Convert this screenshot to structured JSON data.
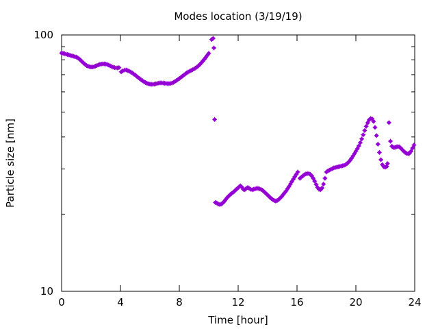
{
  "chart_data": {
    "type": "scatter",
    "title": "Modes location (3/19/19)",
    "xlabel": "Time [hour]",
    "ylabel": "Particle size [nm]",
    "xlim": [
      0,
      24
    ],
    "ylim": [
      10,
      100
    ],
    "yscale": "log",
    "grid": false,
    "legend": "none",
    "xticks": [
      0,
      4,
      8,
      12,
      16,
      20,
      24
    ],
    "xtick_labels": [
      "0",
      "4",
      "8",
      "12",
      "16",
      "20",
      "24"
    ],
    "yticks": [
      10,
      100
    ],
    "ytick_labels": [
      "10",
      "100"
    ],
    "marker_color": "#9400d3",
    "series": [
      {
        "points": [
          [
            0,
            85
          ],
          [
            0.1,
            84.8
          ],
          [
            0.2,
            84.5
          ],
          [
            0.3,
            84.2
          ],
          [
            0.4,
            83.9
          ],
          [
            0.5,
            83.6
          ],
          [
            0.6,
            83.2
          ],
          [
            0.7,
            82.9
          ],
          [
            0.8,
            82.6
          ],
          [
            0.9,
            82.3
          ],
          [
            1,
            82
          ],
          [
            1.1,
            81.4
          ],
          [
            1.2,
            80.6
          ],
          [
            1.3,
            79.6
          ],
          [
            1.4,
            78.6
          ],
          [
            1.5,
            77.6
          ],
          [
            1.6,
            76.7
          ],
          [
            1.7,
            76
          ],
          [
            1.8,
            75.5
          ],
          [
            1.9,
            75.2
          ],
          [
            2,
            75
          ],
          [
            2.1,
            75
          ],
          [
            2.2,
            75.2
          ],
          [
            2.3,
            75.6
          ],
          [
            2.4,
            76
          ],
          [
            2.5,
            76.4
          ],
          [
            2.6,
            76.8
          ],
          [
            2.7,
            77
          ],
          [
            2.8,
            77.1
          ],
          [
            2.9,
            77.1
          ],
          [
            3,
            77
          ],
          [
            3.1,
            76.7
          ],
          [
            3.2,
            76.3
          ],
          [
            3.3,
            75.8
          ],
          [
            3.4,
            75.3
          ],
          [
            3.5,
            74.9
          ],
          [
            3.6,
            74.6
          ],
          [
            3.7,
            74.4
          ],
          [
            3.8,
            74.4
          ],
          [
            3.9,
            74.6
          ],
          [
            4.05,
            71.8
          ],
          [
            4.15,
            72.4
          ],
          [
            4.3,
            73
          ],
          [
            4.4,
            73
          ],
          [
            4.5,
            72.6
          ],
          [
            4.6,
            72.2
          ],
          [
            4.7,
            71.7
          ],
          [
            4.8,
            71.1
          ],
          [
            4.9,
            70.4
          ],
          [
            5,
            69.8
          ],
          [
            5.1,
            69
          ],
          [
            5.2,
            68.3
          ],
          [
            5.3,
            67.6
          ],
          [
            5.4,
            66.9
          ],
          [
            5.5,
            66.3
          ],
          [
            5.6,
            65.7
          ],
          [
            5.7,
            65.2
          ],
          [
            5.8,
            64.8
          ],
          [
            5.9,
            64.5
          ],
          [
            6,
            64.3
          ],
          [
            6.1,
            64.2
          ],
          [
            6.2,
            64.2
          ],
          [
            6.3,
            64.3
          ],
          [
            6.4,
            64.5
          ],
          [
            6.5,
            64.7
          ],
          [
            6.6,
            64.9
          ],
          [
            6.7,
            65
          ],
          [
            6.8,
            65
          ],
          [
            6.9,
            64.9
          ],
          [
            7,
            64.8
          ],
          [
            7.1,
            64.7
          ],
          [
            7.2,
            64.6
          ],
          [
            7.3,
            64.6
          ],
          [
            7.4,
            64.7
          ],
          [
            7.5,
            64.9
          ],
          [
            7.6,
            65.3
          ],
          [
            7.7,
            65.8
          ],
          [
            7.8,
            66.4
          ],
          [
            7.9,
            67
          ],
          [
            8,
            67.6
          ],
          [
            8.1,
            68.3
          ],
          [
            8.2,
            69
          ],
          [
            8.3,
            69.7
          ],
          [
            8.4,
            70.4
          ],
          [
            8.5,
            71.1
          ],
          [
            8.6,
            71.7
          ],
          [
            8.7,
            72.2
          ],
          [
            8.8,
            72.7
          ],
          [
            8.9,
            73.2
          ],
          [
            9,
            73.7
          ],
          [
            9.1,
            74.3
          ],
          [
            9.2,
            75
          ],
          [
            9.3,
            75.8
          ],
          [
            9.4,
            76.8
          ],
          [
            9.5,
            77.9
          ],
          [
            9.6,
            79.1
          ],
          [
            9.7,
            80.4
          ],
          [
            9.8,
            81.8
          ],
          [
            9.9,
            83.3
          ],
          [
            10,
            84.8
          ],
          [
            10.2,
            96
          ],
          [
            10.3,
            97
          ],
          [
            10.35,
            89
          ],
          [
            10.4,
            46.8
          ],
          [
            10.45,
            22.2
          ],
          [
            10.55,
            22.1
          ],
          [
            10.65,
            21.9
          ],
          [
            10.75,
            21.8
          ],
          [
            10.85,
            21.9
          ],
          [
            10.95,
            22.1
          ],
          [
            11.05,
            22.4
          ],
          [
            11.15,
            22.8
          ],
          [
            11.25,
            23.2
          ],
          [
            11.35,
            23.5
          ],
          [
            11.45,
            23.8
          ],
          [
            11.55,
            24.1
          ],
          [
            11.65,
            24.3
          ],
          [
            11.75,
            24.6
          ],
          [
            11.85,
            24.9
          ],
          [
            11.95,
            25.2
          ],
          [
            12.05,
            25.5
          ],
          [
            12.15,
            25.8
          ],
          [
            12.25,
            25.5
          ],
          [
            12.35,
            25
          ],
          [
            12.45,
            24.9
          ],
          [
            12.55,
            25.2
          ],
          [
            12.65,
            25.4
          ],
          [
            12.75,
            25.2
          ],
          [
            12.85,
            25
          ],
          [
            12.95,
            24.9
          ],
          [
            13.05,
            25
          ],
          [
            13.15,
            25.1
          ],
          [
            13.25,
            25.2
          ],
          [
            13.35,
            25.2
          ],
          [
            13.45,
            25.1
          ],
          [
            13.55,
            25
          ],
          [
            13.65,
            24.8
          ],
          [
            13.75,
            24.5
          ],
          [
            13.85,
            24.2
          ],
          [
            13.95,
            23.9
          ],
          [
            14.05,
            23.6
          ],
          [
            14.15,
            23.3
          ],
          [
            14.25,
            23
          ],
          [
            14.35,
            22.8
          ],
          [
            14.45,
            22.6
          ],
          [
            14.55,
            22.5
          ],
          [
            14.65,
            22.6
          ],
          [
            14.75,
            22.8
          ],
          [
            14.85,
            23.1
          ],
          [
            14.95,
            23.4
          ],
          [
            15.05,
            23.8
          ],
          [
            15.15,
            24.2
          ],
          [
            15.25,
            24.6
          ],
          [
            15.35,
            25.1
          ],
          [
            15.45,
            25.6
          ],
          [
            15.55,
            26.2
          ],
          [
            15.65,
            26.8
          ],
          [
            15.75,
            27.4
          ],
          [
            15.85,
            28
          ],
          [
            15.95,
            28.6
          ],
          [
            16.05,
            29.2
          ],
          [
            16.2,
            27.6
          ],
          [
            16.3,
            27.9
          ],
          [
            16.4,
            28.2
          ],
          [
            16.5,
            28.5
          ],
          [
            16.6,
            28.7
          ],
          [
            16.7,
            28.8
          ],
          [
            16.8,
            28.8
          ],
          [
            16.9,
            28.6
          ],
          [
            17,
            28.2
          ],
          [
            17.1,
            27.6
          ],
          [
            17.2,
            26.9
          ],
          [
            17.3,
            26.1
          ],
          [
            17.4,
            25.4
          ],
          [
            17.5,
            25
          ],
          [
            17.6,
            24.9
          ],
          [
            17.7,
            25.3
          ],
          [
            17.8,
            26.2
          ],
          [
            17.9,
            27.6
          ],
          [
            18,
            29.2
          ],
          [
            18.1,
            29.5
          ],
          [
            18.2,
            29.7
          ],
          [
            18.3,
            29.9
          ],
          [
            18.4,
            30.1
          ],
          [
            18.5,
            30.3
          ],
          [
            18.6,
            30.4
          ],
          [
            18.7,
            30.5
          ],
          [
            18.8,
            30.6
          ],
          [
            18.9,
            30.7
          ],
          [
            19,
            30.8
          ],
          [
            19.1,
            30.9
          ],
          [
            19.2,
            31
          ],
          [
            19.3,
            31.2
          ],
          [
            19.4,
            31.5
          ],
          [
            19.5,
            31.9
          ],
          [
            19.6,
            32.4
          ],
          [
            19.7,
            33
          ],
          [
            19.8,
            33.7
          ],
          [
            19.9,
            34.4
          ],
          [
            20,
            35.2
          ],
          [
            20.1,
            36
          ],
          [
            20.2,
            36.9
          ],
          [
            20.3,
            38
          ],
          [
            20.4,
            39.3
          ],
          [
            20.5,
            40.8
          ],
          [
            20.6,
            42.4
          ],
          [
            20.7,
            44
          ],
          [
            20.8,
            45.4
          ],
          [
            20.9,
            46.6
          ],
          [
            21,
            47.2
          ],
          [
            21.1,
            47.1
          ],
          [
            21.2,
            46
          ],
          [
            21.3,
            43.6
          ],
          [
            21.4,
            40.5
          ],
          [
            21.5,
            37.5
          ],
          [
            21.6,
            34.8
          ],
          [
            21.7,
            32.6
          ],
          [
            21.8,
            31.2
          ],
          [
            21.9,
            30.6
          ],
          [
            22,
            30.5
          ],
          [
            22.1,
            30.7
          ],
          [
            22.15,
            31.5
          ],
          [
            22.25,
            45.5
          ],
          [
            22.35,
            38.5
          ],
          [
            22.45,
            36.8
          ],
          [
            22.55,
            36.4
          ],
          [
            22.65,
            36.4
          ],
          [
            22.75,
            36.6
          ],
          [
            22.85,
            36.7
          ],
          [
            22.95,
            36.6
          ],
          [
            23.05,
            36.2
          ],
          [
            23.15,
            35.7
          ],
          [
            23.25,
            35.2
          ],
          [
            23.35,
            34.8
          ],
          [
            23.45,
            34.5
          ],
          [
            23.55,
            34.4
          ],
          [
            23.65,
            34.6
          ],
          [
            23.75,
            35.2
          ],
          [
            23.85,
            36.2
          ],
          [
            23.95,
            37.2
          ]
        ]
      }
    ]
  }
}
